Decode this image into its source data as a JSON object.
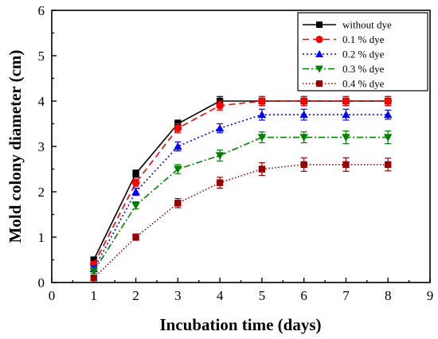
{
  "chart_data": {
    "type": "line",
    "xlabel": "Incubation time (days)",
    "ylabel": "Mold colony diameter (cm)",
    "xlim": [
      0,
      9
    ],
    "ylim": [
      0,
      6
    ],
    "x_ticks": [
      0,
      1,
      2,
      3,
      4,
      5,
      6,
      7,
      8,
      9
    ],
    "y_ticks": [
      0,
      1,
      2,
      3,
      4,
      5,
      6
    ],
    "legend_position": "top-right",
    "grid": false,
    "x": [
      1,
      2,
      3,
      4,
      5,
      6,
      7,
      8
    ],
    "series": [
      {
        "name": "without dye",
        "color": "#000000",
        "marker": "square",
        "line_style": "solid",
        "values": [
          0.5,
          2.4,
          3.5,
          4.0,
          4.0,
          4.0,
          4.0,
          4.0
        ],
        "errors": [
          0.06,
          0.08,
          0.08,
          0.1,
          0.1,
          0.1,
          0.1,
          0.1
        ]
      },
      {
        "name": "0.1 % dye",
        "color": "#ff0000",
        "marker": "circle",
        "line_style": "dashed",
        "values": [
          0.4,
          2.2,
          3.4,
          3.9,
          4.0,
          4.0,
          4.0,
          4.0
        ],
        "errors": [
          0.06,
          0.08,
          0.1,
          0.1,
          0.1,
          0.1,
          0.1,
          0.1
        ]
      },
      {
        "name": "0.2 % dye",
        "color": "#0000ff",
        "marker": "triangle-up",
        "line_style": "dotted",
        "values": [
          0.3,
          2.0,
          3.0,
          3.4,
          3.7,
          3.7,
          3.7,
          3.7
        ],
        "errors": [
          0.06,
          0.08,
          0.1,
          0.1,
          0.12,
          0.12,
          0.12,
          0.1
        ]
      },
      {
        "name": "0.3 % dye",
        "color": "#008000",
        "marker": "triangle-down",
        "line_style": "dash-dot",
        "values": [
          0.25,
          1.7,
          2.5,
          2.8,
          3.2,
          3.2,
          3.2,
          3.2
        ],
        "errors": [
          0.05,
          0.08,
          0.1,
          0.12,
          0.12,
          0.12,
          0.14,
          0.14
        ]
      },
      {
        "name": "0.4 % dye",
        "color": "#990000",
        "marker": "square",
        "line_style": "short-dotted",
        "values": [
          0.1,
          1.0,
          1.75,
          2.2,
          2.5,
          2.6,
          2.6,
          2.6
        ],
        "errors": [
          0.05,
          0.07,
          0.1,
          0.12,
          0.14,
          0.15,
          0.15,
          0.14
        ]
      }
    ]
  }
}
